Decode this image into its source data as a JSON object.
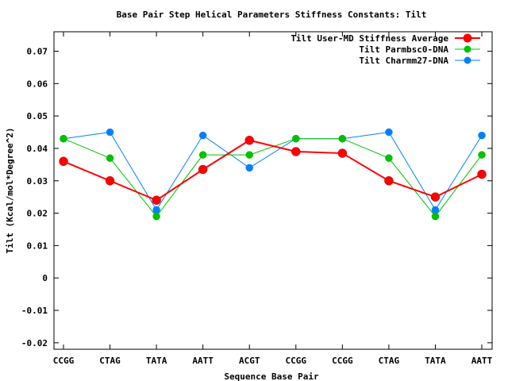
{
  "chart_data": {
    "type": "line",
    "title": "Base Pair Step Helical Parameters Stiffness Constants: Tilt",
    "xlabel": "Sequence Base Pair",
    "ylabel": "Tilt (Kcal/mol*Degree^2)",
    "categories": [
      "CCGG",
      "CTAG",
      "TATA",
      "AATT",
      "ACGT",
      "CCGG",
      "CCGG",
      "CTAG",
      "TATA",
      "AATT"
    ],
    "ylim": [
      -0.022,
      0.076
    ],
    "yticks": [
      -0.02,
      -0.01,
      0,
      0.01,
      0.02,
      0.03,
      0.04,
      0.05,
      0.06,
      0.07
    ],
    "ytick_labels": [
      "-0.02",
      "-0.01",
      "0",
      "0.01",
      "0.02",
      "0.03",
      "0.04",
      "0.05",
      "0.06",
      "0.07"
    ],
    "grid": false,
    "legend_position": "top-right",
    "series": [
      {
        "name": "Tilt User-MD Stiffness Average",
        "color": "#ff0000",
        "values": [
          0.036,
          0.03,
          0.024,
          0.0335,
          0.0425,
          0.039,
          0.0385,
          0.03,
          0.025,
          0.032
        ]
      },
      {
        "name": "Tilt Parmbsc0-DNA",
        "color": "#00c000",
        "values": [
          0.043,
          0.037,
          0.019,
          0.038,
          0.038,
          0.043,
          0.043,
          0.037,
          0.019,
          0.038
        ]
      },
      {
        "name": "Tilt Charmm27-DNA",
        "color": "#0080ff",
        "values": [
          0.043,
          0.045,
          0.021,
          0.044,
          0.034,
          0.043,
          0.043,
          0.045,
          0.021,
          0.044
        ]
      }
    ]
  }
}
